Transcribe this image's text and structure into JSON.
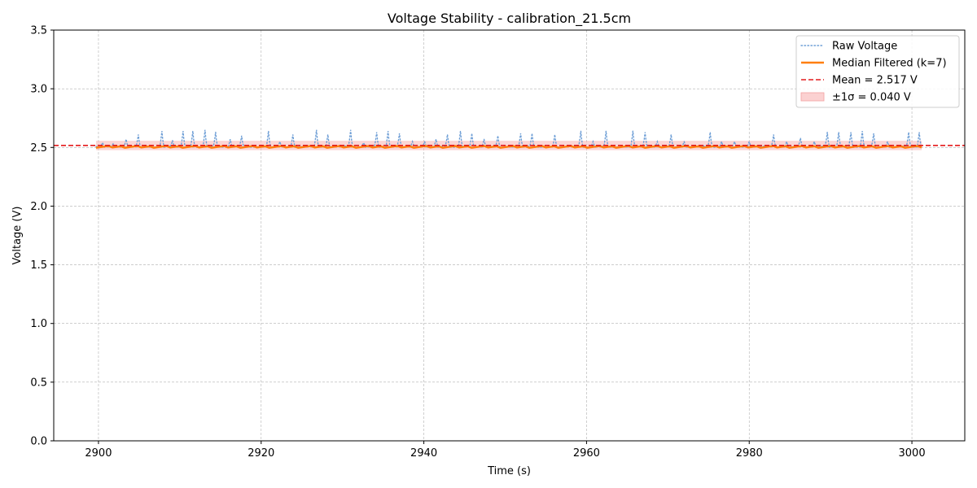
{
  "chart_data": {
    "type": "line",
    "title": "Voltage Stability - calibration_21.5cm",
    "xlabel": "Time (s)",
    "ylabel": "Voltage (V)",
    "xlim": [
      2894.5,
      3006.5
    ],
    "ylim": [
      0.0,
      3.5
    ],
    "xticks": [
      2900,
      2920,
      2940,
      2960,
      2980,
      3000
    ],
    "yticks": [
      0.0,
      0.5,
      1.0,
      1.5,
      2.0,
      2.5,
      3.0,
      3.5
    ],
    "xtick_labels": [
      "2900",
      "2920",
      "2940",
      "2960",
      "2980",
      "3000"
    ],
    "ytick_labels": [
      "0.0",
      "0.5",
      "1.0",
      "1.5",
      "2.0",
      "2.5",
      "3.0",
      "3.5"
    ],
    "grid": true,
    "legend_position": "top-right",
    "x_range": [
      2899.7,
      3001.2
    ],
    "spike_times": [
      2900.5,
      2901.8,
      2903.4,
      2904.9,
      2907.8,
      2909.1,
      2910.4,
      2911.6,
      2913.1,
      2914.4,
      2916.2,
      2917.6,
      2920.9,
      2922.3,
      2923.9,
      2926.8,
      2928.2,
      2931.0,
      2932.6,
      2934.2,
      2935.6,
      2937.0,
      2938.6,
      2940.1,
      2941.5,
      2942.9,
      2944.5,
      2945.9,
      2947.4,
      2949.1,
      2951.9,
      2953.3,
      2956.1,
      2959.3,
      2960.8,
      2962.4,
      2965.7,
      2967.2,
      2968.7,
      2970.4,
      2972.0,
      2975.2,
      2976.6,
      2978.2,
      2980.0,
      2983.0,
      2984.6,
      2986.3,
      2988.0,
      2989.6,
      2991.0,
      2992.5,
      2993.9,
      2995.3,
      2997.0,
      2999.6,
      3000.9
    ],
    "spike_peaks": [
      2.54,
      2.53,
      2.57,
      2.61,
      2.64,
      2.56,
      2.64,
      2.64,
      2.65,
      2.63,
      2.57,
      2.6,
      2.64,
      2.55,
      2.61,
      2.65,
      2.61,
      2.65,
      2.54,
      2.63,
      2.64,
      2.62,
      2.55,
      2.55,
      2.57,
      2.61,
      2.64,
      2.62,
      2.57,
      2.6,
      2.62,
      2.62,
      2.61,
      2.64,
      2.55,
      2.64,
      2.64,
      2.63,
      2.55,
      2.61,
      2.55,
      2.63,
      2.55,
      2.55,
      2.55,
      2.61,
      2.55,
      2.58,
      2.55,
      2.63,
      2.63,
      2.63,
      2.64,
      2.62,
      2.55,
      2.63,
      2.63
    ],
    "baseline_voltage": 2.508,
    "filtered_voltage": 2.505,
    "mean": 2.517,
    "sigma": 0.04,
    "series": [
      {
        "name": "Raw Voltage",
        "color": "#6f9fd6",
        "style": "dotted"
      },
      {
        "name": "Median Filtered (k=7)",
        "color": "#ff7f0e",
        "style": "solid"
      },
      {
        "name": "Mean = 2.517 V",
        "color": "#e41a1c",
        "style": "dashed"
      },
      {
        "name": "±1σ = 0.040 V",
        "color": "#f8b3b3",
        "style": "band"
      }
    ]
  }
}
